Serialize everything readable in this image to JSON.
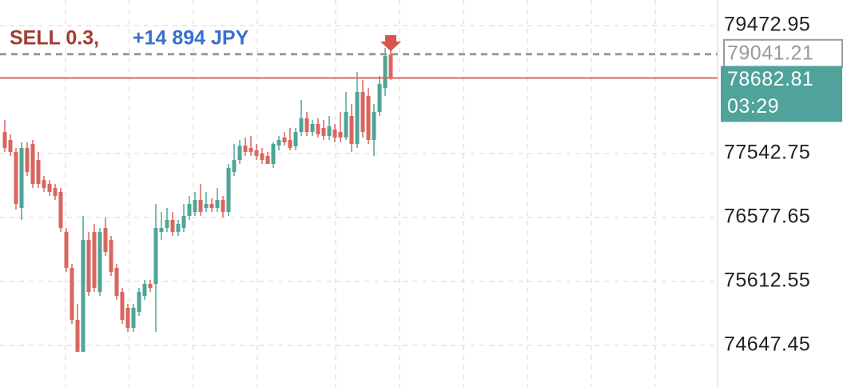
{
  "chart_data": {
    "type": "candlestick",
    "ylim": [
      74020,
      79859
    ],
    "yticks": [
      74647.45,
      75612.55,
      76577.65,
      77542.75,
      79472.95
    ],
    "grid": true,
    "up_color": "#4ea597",
    "down_color": "#d9665e",
    "order_label": "SELL 0.3,",
    "order_label_color": "#a33a32",
    "profit_label": "+14 894 JPY",
    "profit_label_color": "#3a6fd0",
    "position_price": 79041.21,
    "position_color": "#9a9a9a",
    "current_price": 78682.81,
    "current_line_color": "#d9665e",
    "current_box_color": "#4fa39a",
    "timer": "03:29",
    "ohlc": [
      [
        77868,
        78049,
        77567,
        77627
      ],
      [
        77748,
        77832,
        77507,
        77567
      ],
      [
        77567,
        77627,
        76698,
        76783
      ],
      [
        76722,
        77712,
        76541,
        77627
      ],
      [
        77627,
        77712,
        77205,
        77265
      ],
      [
        77687,
        77748,
        77024,
        77084
      ],
      [
        77446,
        77567,
        77024,
        77084
      ],
      [
        77145,
        77205,
        76964,
        77024
      ],
      [
        77084,
        77145,
        76903,
        76964
      ],
      [
        77024,
        77084,
        76843,
        76903
      ],
      [
        76964,
        77024,
        76361,
        76421
      ],
      [
        76361,
        76421,
        75757,
        75817
      ],
      [
        75817,
        75878,
        74973,
        75033
      ],
      [
        75033,
        75275,
        74551,
        74551
      ],
      [
        74551,
        76602,
        74551,
        76240
      ],
      [
        76240,
        76361,
        75395,
        75455
      ],
      [
        76361,
        76481,
        75455,
        75516
      ],
      [
        75455,
        76421,
        75395,
        76361
      ],
      [
        76421,
        76578,
        75998,
        76059
      ],
      [
        76240,
        76300,
        75697,
        75757
      ],
      [
        75817,
        75878,
        75335,
        75395
      ],
      [
        75455,
        75516,
        74973,
        75033
      ],
      [
        75214,
        75275,
        74853,
        74913
      ],
      [
        74913,
        75275,
        74853,
        75214
      ],
      [
        75154,
        75516,
        75094,
        75455
      ],
      [
        75395,
        75637,
        75335,
        75576
      ],
      [
        75576,
        75637,
        75455,
        75516
      ],
      [
        75576,
        76783,
        74853,
        76421
      ],
      [
        76361,
        76662,
        76240,
        76421
      ],
      [
        76421,
        76722,
        76361,
        76541
      ],
      [
        76541,
        76662,
        76300,
        76361
      ],
      [
        76361,
        76541,
        76300,
        76481
      ],
      [
        76421,
        76783,
        76361,
        76602
      ],
      [
        76602,
        76903,
        76541,
        76783
      ],
      [
        76662,
        76964,
        76602,
        76843
      ],
      [
        76843,
        77084,
        76602,
        76662
      ],
      [
        76722,
        76964,
        76662,
        76783
      ],
      [
        76783,
        76867,
        76662,
        76722
      ],
      [
        76722,
        77024,
        76662,
        76843
      ],
      [
        76843,
        76903,
        76578,
        76662
      ],
      [
        76662,
        77386,
        76602,
        77326
      ],
      [
        77265,
        77687,
        77205,
        77446
      ],
      [
        77446,
        77748,
        77386,
        77663
      ],
      [
        77663,
        77784,
        77507,
        77567
      ],
      [
        77627,
        77808,
        77507,
        77567
      ],
      [
        77591,
        77687,
        77446,
        77507
      ],
      [
        77543,
        77627,
        77386,
        77446
      ],
      [
        77507,
        77567,
        77386,
        77386
      ],
      [
        77386,
        77712,
        77326,
        77687
      ],
      [
        77663,
        77808,
        77591,
        77748
      ],
      [
        77784,
        77868,
        77663,
        77712
      ],
      [
        77748,
        77929,
        77591,
        77627
      ],
      [
        77651,
        77929,
        77591,
        77868
      ],
      [
        77868,
        78351,
        77808,
        78074
      ],
      [
        78074,
        78170,
        77808,
        77868
      ],
      [
        77868,
        78049,
        77808,
        77989
      ],
      [
        77989,
        78074,
        77784,
        77832
      ],
      [
        77929,
        78049,
        77748,
        77808
      ],
      [
        77808,
        78110,
        77748,
        77953
      ],
      [
        77905,
        77989,
        77712,
        77784
      ],
      [
        77868,
        78170,
        77712,
        77784
      ],
      [
        77784,
        78472,
        77748,
        78170
      ],
      [
        78110,
        78291,
        77567,
        77687
      ],
      [
        77687,
        78773,
        77627,
        78472
      ],
      [
        78472,
        78653,
        77784,
        77868
      ],
      [
        78411,
        78532,
        77687,
        77748
      ],
      [
        77748,
        78291,
        77507,
        78170
      ],
      [
        78170,
        78713,
        78110,
        78592
      ],
      [
        78532,
        79135,
        78411,
        79014
      ],
      [
        79038,
        79135,
        78653,
        78682.81
      ]
    ]
  }
}
